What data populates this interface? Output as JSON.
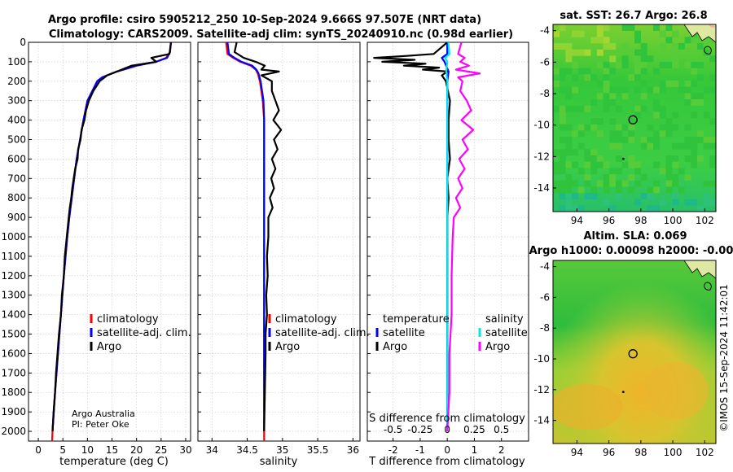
{
  "titles": {
    "line1": "Argo profile: csiro 5905212_250 10-Sep-2024 9.666S 97.507E (NRT data)",
    "line2": "Climatology: CARS2009. Satellite-adj clim: synTS_20240910.nc (0.98d earlier)"
  },
  "credits": {
    "org": "Argo Australia",
    "pi": "PI: Peter Oke"
  },
  "timestamp": "©IMOS 15-Sep-2024 11:42:01",
  "colors": {
    "climatology": "#ff0000",
    "satellite_adj": "#0000ff",
    "argo": "#000000",
    "sat_t": "#0000ff",
    "sat_s": "#00e5ee",
    "argo_s": "#ff00ff"
  },
  "chart_data": [
    {
      "type": "line",
      "id": "temperature",
      "xlabel": "temperature (deg C)",
      "ylabel": "",
      "xlim": [
        -2,
        31
      ],
      "ylim": [
        0,
        2050
      ],
      "y_reversed": true,
      "xticks": [
        0,
        5,
        10,
        15,
        20,
        25,
        30
      ],
      "yticks": [
        0,
        100,
        200,
        300,
        400,
        500,
        600,
        700,
        800,
        900,
        1000,
        1100,
        1200,
        1300,
        1400,
        1500,
        1600,
        1700,
        1800,
        1900,
        2000
      ],
      "legend": [
        "climatology",
        "satellite-adj. clim.",
        "Argo"
      ],
      "series": [
        {
          "name": "climatology",
          "color": "#ff0000",
          "depth": [
            0,
            50,
            80,
            100,
            120,
            150,
            180,
            200,
            250,
            300,
            400,
            500,
            600,
            700,
            800,
            900,
            1000,
            1200,
            1400,
            1600,
            1800,
            2000,
            2050
          ],
          "values": [
            27,
            26.8,
            26,
            24,
            20,
            16,
            13,
            12,
            11,
            10,
            9.2,
            8.5,
            7.8,
            7.3,
            6.8,
            6.3,
            5.9,
            5.2,
            4.6,
            4.0,
            3.4,
            2.9,
            2.8
          ]
        },
        {
          "name": "satellite-adj. clim.",
          "color": "#0000ff",
          "depth": [
            0,
            50,
            80,
            100,
            120,
            150,
            180,
            200,
            250,
            300,
            400,
            500,
            600,
            700,
            800,
            900,
            1000,
            1200,
            1400,
            1600,
            1800,
            2000
          ],
          "values": [
            27,
            26.8,
            26.2,
            24,
            20,
            16,
            13,
            12,
            11,
            10,
            9.2,
            8.5,
            7.8,
            7.3,
            6.8,
            6.3,
            5.9,
            5.2,
            4.6,
            4.0,
            3.4,
            2.9
          ]
        },
        {
          "name": "Argo",
          "color": "#000000",
          "depth": [
            0,
            60,
            80,
            100,
            120,
            140,
            170,
            200,
            250,
            300,
            350,
            400,
            450,
            500,
            550,
            600,
            650,
            700,
            750,
            800,
            850,
            900,
            1000,
            1100,
            1200,
            1300,
            1400,
            1500,
            1600,
            1700,
            1800,
            1900,
            2000
          ],
          "values": [
            27,
            26.7,
            23,
            24,
            19,
            17,
            14,
            12.5,
            11.2,
            10.3,
            9.7,
            9.4,
            8.8,
            8.6,
            8.1,
            8.0,
            7.5,
            7.2,
            6.9,
            6.7,
            6.4,
            6.2,
            5.8,
            5.4,
            5.2,
            4.8,
            4.6,
            4.2,
            3.9,
            3.6,
            3.4,
            3.1,
            2.9
          ]
        }
      ]
    },
    {
      "type": "line",
      "id": "salinity",
      "xlabel": "salinity",
      "xlim": [
        33.8,
        36.1
      ],
      "ylim": [
        0,
        2050
      ],
      "y_reversed": true,
      "xticks": [
        34,
        34.5,
        35,
        35.5,
        36
      ],
      "legend": [
        "climatology",
        "satellite-adj. clim.",
        "Argo"
      ],
      "series": [
        {
          "name": "climatology",
          "color": "#ff0000",
          "depth": [
            0,
            60,
            80,
            100,
            120,
            140,
            160,
            200,
            300,
            400,
            600,
            1000,
            1500,
            2000,
            2050
          ],
          "values": [
            34.2,
            34.22,
            34.3,
            34.4,
            34.55,
            34.62,
            34.65,
            34.68,
            34.72,
            34.74,
            34.74,
            34.74,
            34.74,
            34.74,
            34.74
          ]
        },
        {
          "name": "satellite-adj. clim.",
          "color": "#0000ff",
          "depth": [
            0,
            60,
            80,
            100,
            120,
            140,
            160,
            200,
            300,
            400,
            600,
            1000,
            1500,
            2000
          ],
          "values": [
            34.22,
            34.24,
            34.32,
            34.42,
            34.57,
            34.63,
            34.66,
            34.69,
            34.73,
            34.74,
            34.74,
            34.74,
            34.74,
            34.74
          ]
        },
        {
          "name": "Argo",
          "color": "#000000",
          "depth": [
            0,
            50,
            80,
            100,
            120,
            140,
            150,
            170,
            200,
            250,
            300,
            350,
            400,
            450,
            500,
            550,
            600,
            650,
            700,
            750,
            800,
            850,
            900,
            1000,
            1100,
            1200,
            1300,
            1400,
            1500,
            1600,
            1800,
            2000
          ],
          "values": [
            34.35,
            34.32,
            34.45,
            34.62,
            34.75,
            34.7,
            34.95,
            34.7,
            34.85,
            34.85,
            34.9,
            34.95,
            34.87,
            34.98,
            34.88,
            34.93,
            34.85,
            34.9,
            34.84,
            34.88,
            34.82,
            34.86,
            34.8,
            34.8,
            34.78,
            34.79,
            34.77,
            34.78,
            34.76,
            34.76,
            34.75,
            34.74
          ]
        }
      ]
    },
    {
      "type": "line",
      "id": "differences",
      "xlabel": "T difference from climatology",
      "x2label": "S difference from climatology",
      "xlim": [
        -2.95,
        3.0
      ],
      "ylim": [
        0,
        2050
      ],
      "y_reversed": true,
      "xticks": [
        -2,
        -1,
        0,
        1,
        2
      ],
      "x2ticks": [
        "-0.5",
        "-0.25",
        "0",
        "0.25",
        "0.5"
      ],
      "legend_t": {
        "title": "temperature",
        "items": [
          "satellite",
          "Argo"
        ]
      },
      "legend_s": {
        "title": "salinity",
        "items": [
          "satellite",
          "Argo"
        ]
      },
      "series": [
        {
          "name": "T satellite",
          "color": "#0000ff",
          "depth": [
            0,
            60,
            80,
            100,
            150,
            200,
            300,
            500,
            1000,
            1500,
            2000
          ],
          "values": [
            0,
            0,
            -0.2,
            -0.1,
            0.05,
            0,
            0,
            0,
            0,
            0,
            0
          ]
        },
        {
          "name": "T Argo",
          "color": "#000000",
          "depth": [
            0,
            60,
            70,
            80,
            90,
            100,
            110,
            120,
            130,
            140,
            150,
            170,
            200,
            300,
            400,
            500,
            600,
            700,
            800,
            900,
            1000,
            1200,
            1400,
            1600,
            1800,
            2000
          ],
          "values": [
            0,
            -0.5,
            -1.5,
            -2.7,
            -1.2,
            -2.4,
            -0.8,
            -1.6,
            -0.3,
            -0.9,
            0,
            -0.2,
            -0.05,
            0.1,
            0.05,
            0.05,
            0.1,
            0,
            0.05,
            0,
            0,
            0,
            0,
            0,
            0,
            0
          ]
        },
        {
          "name": "S satellite",
          "color": "#00e5ee",
          "depth": [
            0,
            60,
            80,
            100,
            150,
            200,
            300,
            500,
            1000,
            1500,
            2000
          ],
          "values": [
            0.01,
            0.02,
            -0.02,
            0.0,
            -0.01,
            0,
            0,
            0,
            0,
            0,
            0
          ]
        },
        {
          "name": "S Argo",
          "color": "#ff00ff",
          "depth": [
            0,
            60,
            80,
            100,
            120,
            140,
            160,
            180,
            200,
            250,
            300,
            350,
            400,
            450,
            500,
            550,
            600,
            650,
            700,
            750,
            800,
            850,
            900,
            1000,
            1200,
            1400,
            1600,
            1800,
            2000
          ],
          "values": [
            0.13,
            0.1,
            0.16,
            0.12,
            0.2,
            0.08,
            0.3,
            0.1,
            0.14,
            0.12,
            0.18,
            0.22,
            0.13,
            0.24,
            0.14,
            0.19,
            0.11,
            0.16,
            0.1,
            0.14,
            0.08,
            0.12,
            0.06,
            0.05,
            0.04,
            0.04,
            0.02,
            0.02,
            0.0
          ]
        }
      ]
    },
    {
      "type": "heatmap",
      "id": "sst_map",
      "title": "sat. SST: 26.7 Argo: 26.8",
      "xlim": [
        92.5,
        102.7
      ],
      "ylim": [
        -15.5,
        -3.6
      ],
      "xticks": [
        "94",
        "96",
        "98",
        "100",
        "102"
      ],
      "yticks": [
        "-4",
        "-6",
        "-8",
        "-10",
        "-12",
        "-14"
      ],
      "profile_lon": 97.507,
      "profile_lat": -9.666,
      "marker_lon": 96.9,
      "marker_lat": -12.15
    },
    {
      "type": "heatmap",
      "id": "sla_map",
      "title": "Altim. SLA: 0.069",
      "subtitle": "Argo h1000: 0.00098 h2000: -0.00",
      "xlim": [
        92.5,
        102.7
      ],
      "ylim": [
        -15.5,
        -3.6
      ],
      "xticks": [
        "94",
        "96",
        "98",
        "100",
        "102"
      ],
      "yticks": [
        "-4",
        "-6",
        "-8",
        "-10",
        "-12",
        "-14"
      ],
      "profile_lon": 97.507,
      "profile_lat": -9.666,
      "marker_lon": 96.9,
      "marker_lat": -12.15
    }
  ]
}
